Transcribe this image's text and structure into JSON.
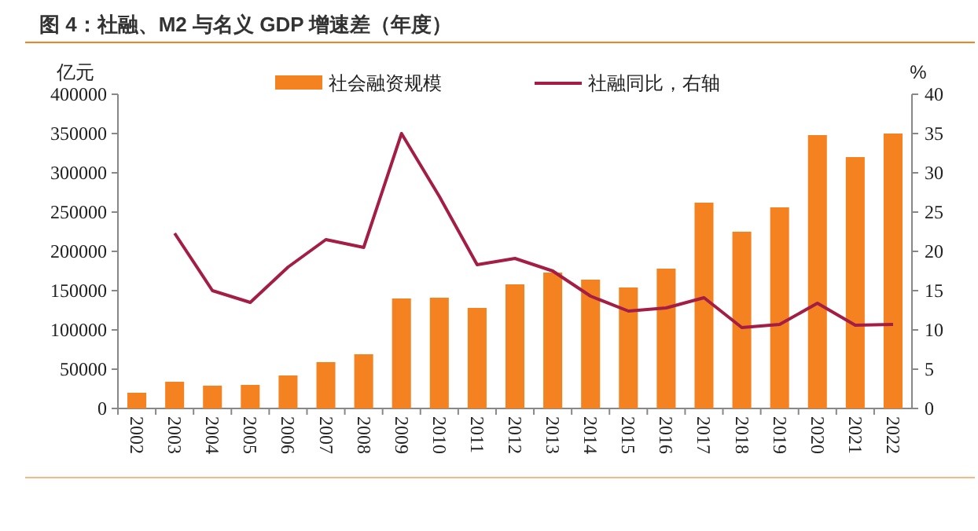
{
  "chart_data": {
    "type": "bar",
    "title": "图 4：社融、M2 与名义 GDP 增速差（年度）",
    "ylabel": "亿元",
    "y2label": "%",
    "categories": [
      "2002",
      "2003",
      "2004",
      "2005",
      "2006",
      "2007",
      "2008",
      "2009",
      "2010",
      "2011",
      "2012",
      "2013",
      "2014",
      "2015",
      "2016",
      "2017",
      "2018",
      "2019",
      "2020",
      "2021",
      "2022"
    ],
    "series": [
      {
        "name": "社会融资规模",
        "color": "#f58220",
        "values": [
          20000,
          34000,
          29000,
          30000,
          42000,
          59000,
          69000,
          140000,
          141000,
          128000,
          158000,
          173000,
          164000,
          154000,
          178000,
          262000,
          225000,
          256000,
          348000,
          320000,
          350000
        ]
      },
      {
        "name": "社融同比，右轴",
        "type": "line",
        "axis": "y2",
        "color": "#a31d44",
        "values": [
          null,
          22.3,
          15,
          13.5,
          18,
          21.5,
          20.5,
          35,
          27,
          18.3,
          19.1,
          17.5,
          14.3,
          12.4,
          12.8,
          14.1,
          10.3,
          10.7,
          13.4,
          10.6,
          10.7
        ]
      }
    ],
    "ylim": [
      0,
      400000
    ],
    "yticks": [
      0,
      50000,
      100000,
      150000,
      200000,
      250000,
      300000,
      350000,
      400000
    ],
    "y2lim": [
      0,
      40
    ],
    "y2ticks": [
      0,
      5,
      10,
      15,
      20,
      25,
      30,
      35,
      40
    ],
    "grid": false,
    "legend": "top",
    "marker": "none",
    "line_style": "solid"
  }
}
